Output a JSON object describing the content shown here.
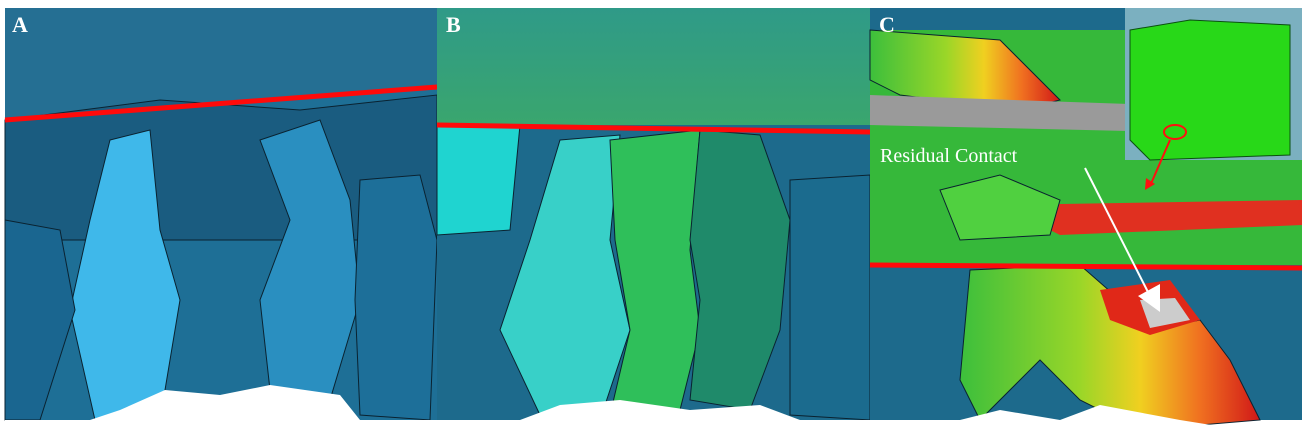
{
  "panels": [
    {
      "label": "A"
    },
    {
      "label": "B"
    },
    {
      "label": "C"
    }
  ],
  "annotation": {
    "text": "Residual Contact"
  }
}
